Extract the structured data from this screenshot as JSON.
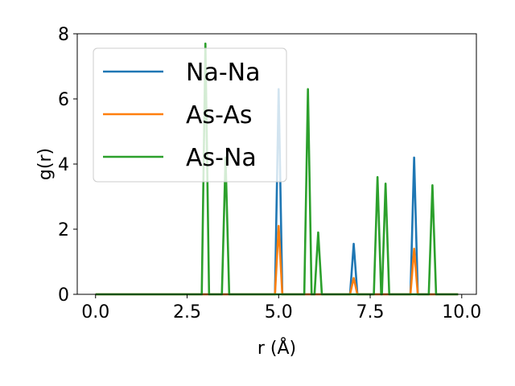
{
  "chart_data": {
    "type": "line",
    "title": "",
    "xlabel": "r (Å)",
    "ylabel": "g(r)",
    "xlim": [
      -0.5,
      10.4
    ],
    "ylim": [
      0,
      8
    ],
    "xticks": [
      0.0,
      2.5,
      5.0,
      7.5,
      10.0
    ],
    "xtick_labels": [
      "0.0",
      "2.5",
      "5.0",
      "7.5",
      "10.0"
    ],
    "yticks": [
      0,
      2,
      4,
      6,
      8
    ],
    "ytick_labels": [
      "0",
      "2",
      "4",
      "6",
      "8"
    ],
    "grid": false,
    "legend_position": "upper-left",
    "series": [
      {
        "name": "Na-Na",
        "color": "#1f77b4",
        "x": [
          0.0,
          4.9,
          5.0,
          5.1,
          6.95,
          7.05,
          7.15,
          8.6,
          8.7,
          8.8,
          9.9
        ],
        "y": [
          0,
          0,
          6.3,
          0,
          0,
          1.55,
          0,
          0,
          4.2,
          0,
          0
        ]
      },
      {
        "name": "As-As",
        "color": "#ff7f0e",
        "x": [
          0.0,
          4.9,
          5.0,
          5.1,
          6.95,
          7.05,
          7.15,
          8.6,
          8.7,
          8.8,
          9.9
        ],
        "y": [
          0,
          0,
          2.1,
          0,
          0,
          0.5,
          0,
          0,
          1.4,
          0,
          0
        ]
      },
      {
        "name": "As-Na",
        "color": "#2ca02c",
        "x": [
          0.0,
          2.9,
          3.0,
          3.1,
          3.45,
          3.55,
          3.65,
          5.7,
          5.8,
          5.9,
          5.98,
          6.08,
          6.18,
          7.6,
          7.7,
          7.8,
          7.82,
          7.92,
          8.02,
          9.1,
          9.2,
          9.3,
          9.9
        ],
        "y": [
          0,
          0,
          7.7,
          0,
          0,
          4.2,
          0,
          0,
          6.3,
          0,
          0,
          1.9,
          0,
          0,
          3.6,
          0,
          0,
          3.4,
          0,
          0,
          3.35,
          0,
          0
        ]
      }
    ]
  }
}
